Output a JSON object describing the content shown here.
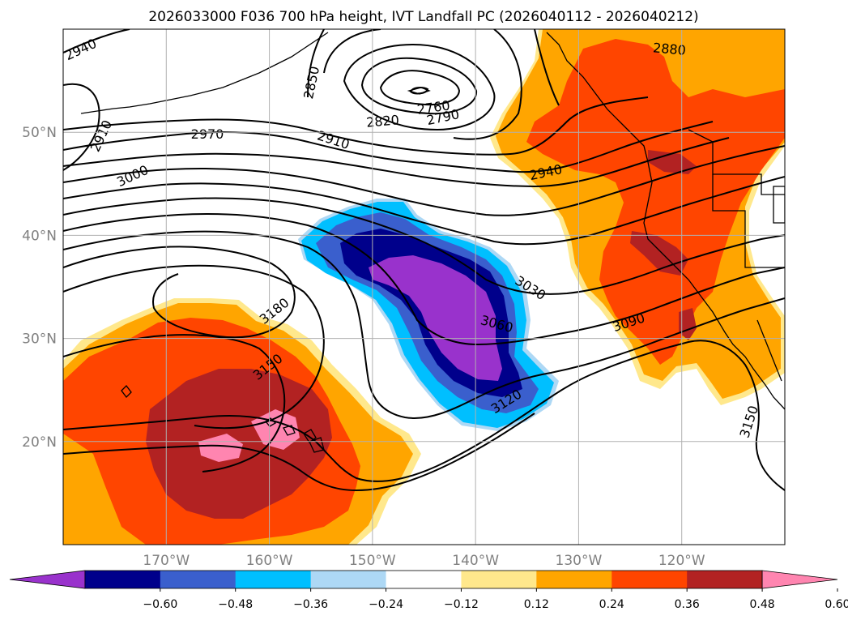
{
  "title": "2026033000 F036 700 hPa height, IVT Landfall PC (2026040112 - 2026040212)",
  "map": {
    "lon_range": [
      -180,
      -110
    ],
    "lat_range": [
      10,
      60
    ],
    "lon_ticks": [
      {
        "value": -170,
        "label": "170°W"
      },
      {
        "value": -160,
        "label": "160°W"
      },
      {
        "value": -150,
        "label": "150°W"
      },
      {
        "value": -140,
        "label": "140°W"
      },
      {
        "value": -130,
        "label": "130°W"
      },
      {
        "value": -120,
        "label": "120°W"
      }
    ],
    "lat_ticks": [
      {
        "value": 20,
        "label": "20°N"
      },
      {
        "value": 30,
        "label": "30°N"
      },
      {
        "value": 40,
        "label": "40°N"
      },
      {
        "value": 50,
        "label": "50°N"
      }
    ],
    "grid": true,
    "coastlines": true,
    "contour_labels": [
      "2940",
      "2850",
      "2760",
      "2790",
      "2820",
      "2880",
      "2910",
      "2970",
      "2910",
      "3000",
      "2940",
      "3030",
      "3060",
      "3090",
      "3180",
      "3150",
      "3120",
      "3150"
    ]
  },
  "colorbar": {
    "orientation": "horizontal",
    "extend": "both",
    "tick_labels": [
      "−0.60",
      "−0.48",
      "−0.36",
      "−0.24",
      "−0.12",
      "0.12",
      "0.24",
      "0.36",
      "0.48",
      "0.60"
    ],
    "colors": [
      "#9932cc",
      "#00008b",
      "#3a5fcd",
      "#00bfff",
      "#add8f5",
      "#ffffff",
      "#ffe88c",
      "#ffa500",
      "#ff4500",
      "#b22222",
      "#ff85b0"
    ]
  }
}
